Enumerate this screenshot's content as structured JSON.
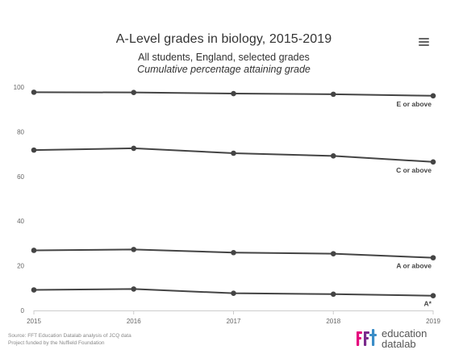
{
  "menu": {
    "icon": "hamburger-menu-icon"
  },
  "footer": {
    "source_line1": "Source: FFT Education Datalab analysis of JCQ data",
    "source_line2": "Project funded by the Nuffield Foundation"
  },
  "logo": {
    "mark": "fft",
    "word1": "education",
    "word2": "datalab",
    "colors": [
      "#e5007d",
      "#7a2a8c",
      "#3a8dc7"
    ]
  },
  "chart_data": {
    "type": "line",
    "title": "A-Level grades in biology, 2015-2019",
    "subtitle": "All students, England, selected grades",
    "subtitle2": "Cumulative percentage attaining grade",
    "x": [
      "2015",
      "2016",
      "2017",
      "2018",
      "2019"
    ],
    "ylim": [
      0,
      100
    ],
    "yticks": [
      0,
      20,
      40,
      60,
      80,
      100
    ],
    "grid": false,
    "line_color": "#444444",
    "series": [
      {
        "name": "E or above",
        "values": [
          97.7,
          97.6,
          97.1,
          96.8,
          96.1
        ]
      },
      {
        "name": "C or above",
        "values": [
          71.8,
          72.6,
          70.4,
          69.2,
          66.5
        ]
      },
      {
        "name": "A or above",
        "values": [
          26.9,
          27.3,
          25.9,
          25.4,
          23.6
        ]
      },
      {
        "name": "A*",
        "values": [
          9.2,
          9.6,
          7.7,
          7.3,
          6.6
        ]
      }
    ]
  }
}
